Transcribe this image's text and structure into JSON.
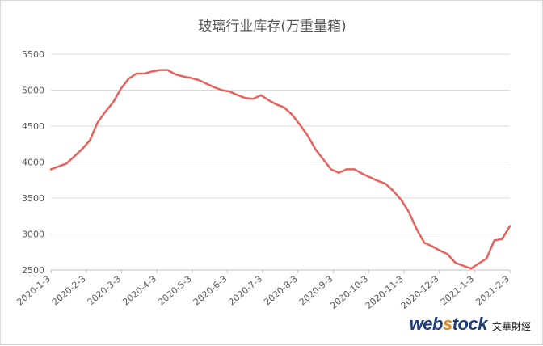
{
  "chart_data": {
    "type": "line",
    "title": "玻璃行业库存(万重量箱)",
    "xlabel": "",
    "ylabel": "",
    "ylim": [
      2500,
      5500
    ],
    "yticks": [
      2500,
      3000,
      3500,
      4000,
      4500,
      5000,
      5500
    ],
    "xticks": [
      "2020-1-3",
      "2020-2-3",
      "2020-3-3",
      "2020-4-3",
      "2020-5-3",
      "2020-6-3",
      "2020-7-3",
      "2020-8-3",
      "2020-9-3",
      "2020-10-3",
      "2020-11-3",
      "2020-12-3",
      "2021-1-3",
      "2021-2-3"
    ],
    "grid": "horizontal",
    "color": "#e8615d",
    "series": [
      {
        "values": [
          3900,
          3940,
          3980,
          4080,
          4180,
          4300,
          4550,
          4700,
          4830,
          5020,
          5160,
          5230,
          5230,
          5260,
          5280,
          5280,
          5220,
          5190,
          5170,
          5140,
          5090,
          5040,
          5000,
          4980,
          4930,
          4890,
          4880,
          4930,
          4860,
          4800,
          4760,
          4660,
          4520,
          4370,
          4180,
          4040,
          3900,
          3850,
          3900,
          3900,
          3840,
          3790,
          3740,
          3700,
          3600,
          3480,
          3310,
          3070,
          2880,
          2830,
          2770,
          2720,
          2600,
          2560,
          2520,
          2590,
          2660,
          2910,
          2930,
          3110
        ]
      }
    ]
  },
  "logo": {
    "brand_web": "web",
    "brand_s": "s",
    "brand_tock": "tock",
    "brand_cn": "文華財經"
  }
}
